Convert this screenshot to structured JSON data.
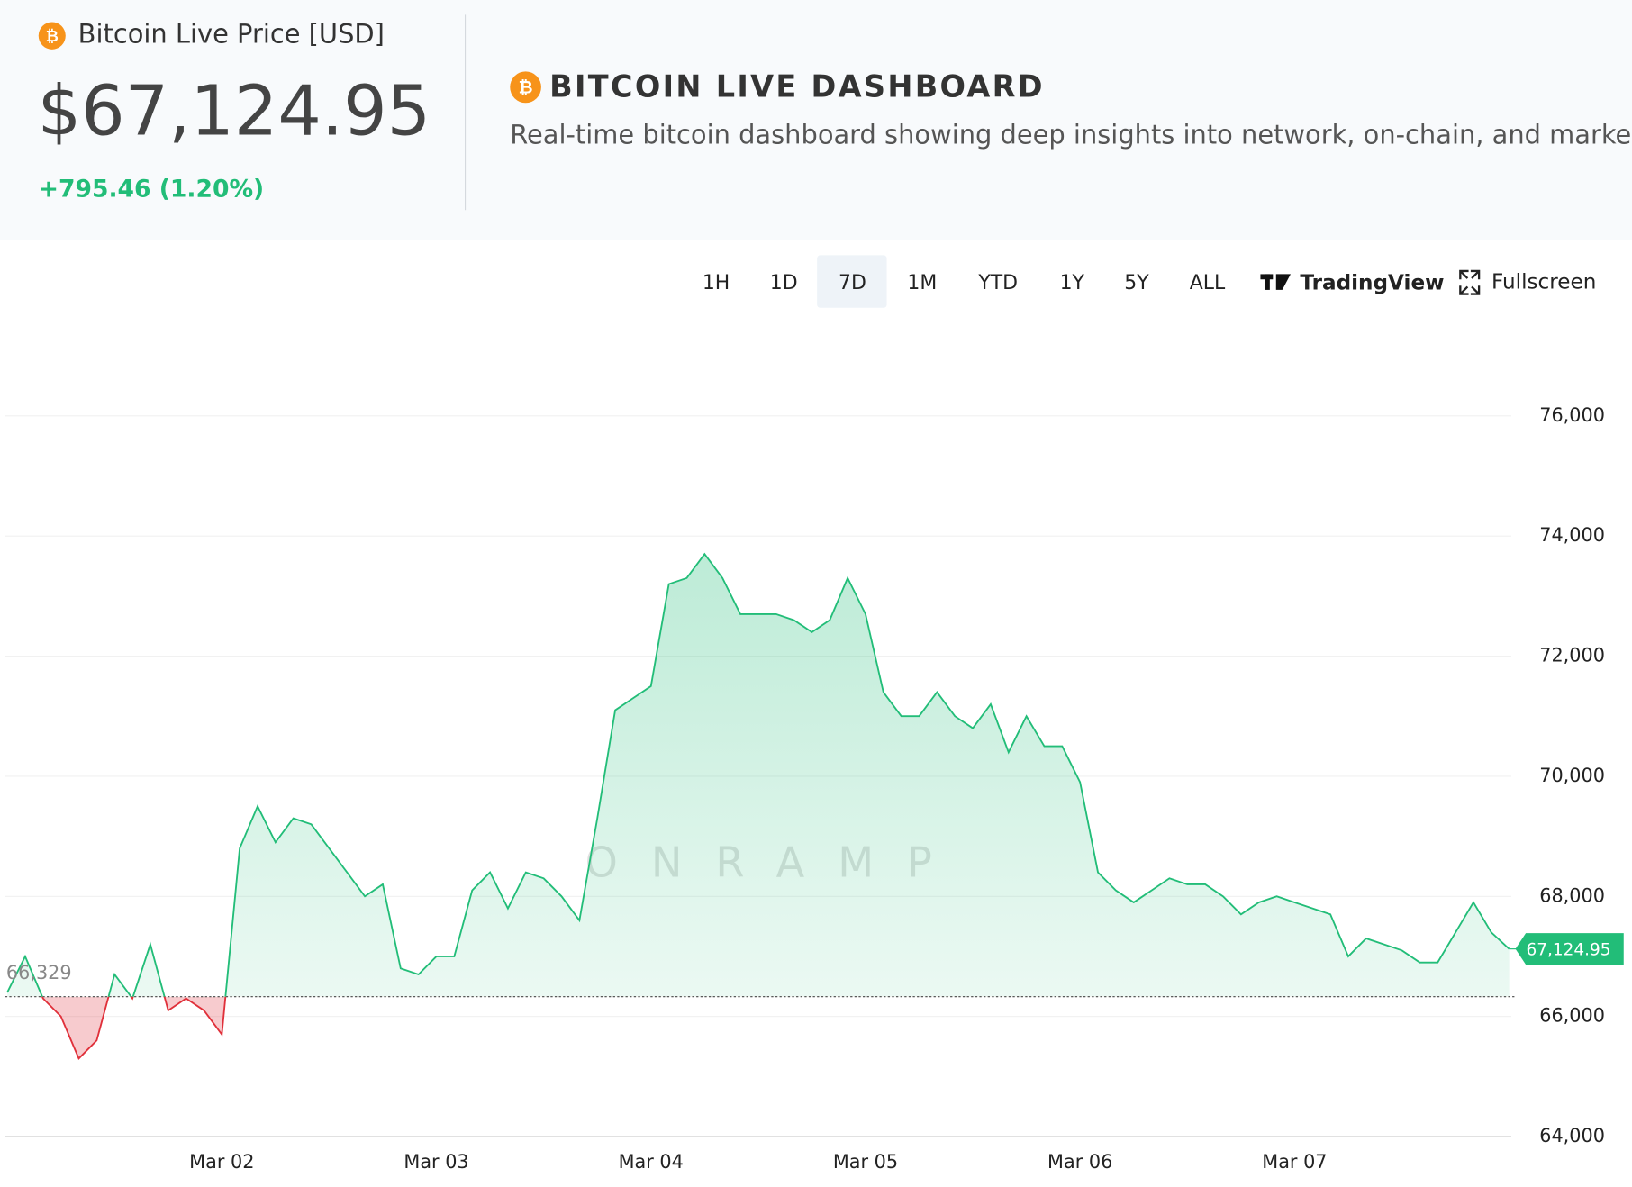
{
  "header": {
    "title": "Bitcoin Live Price [USD]",
    "price": "$67,124.95",
    "change": "+795.46 (1.20%)"
  },
  "dashboard": {
    "title": "BITCOIN LIVE DASHBOARD",
    "subtitle": "Real-time bitcoin dashboard showing deep insights into network, on-chain, and market data"
  },
  "toolbar": {
    "ranges": [
      "1H",
      "1D",
      "7D",
      "1M",
      "YTD",
      "1Y",
      "5Y",
      "ALL"
    ],
    "selected": "7D",
    "tradingview": "TradingView",
    "fullscreen": "Fullscreen"
  },
  "chart_data": {
    "type": "line",
    "values": [
      66400,
      67000,
      66300,
      66000,
      65300,
      65600,
      66700,
      66300,
      67200,
      66100,
      66300,
      66100,
      65700,
      68800,
      69500,
      68900,
      69300,
      69200,
      68800,
      68400,
      68000,
      68200,
      66800,
      66700,
      67000,
      67000,
      68100,
      68400,
      67800,
      68400,
      68300,
      68000,
      67600,
      69300,
      71100,
      71300,
      71500,
      73200,
      73300,
      73700,
      73300,
      72700,
      72700,
      72700,
      72600,
      72400,
      72600,
      73300,
      72700,
      71400,
      71000,
      71000,
      71400,
      71000,
      70800,
      71200,
      70400,
      71000,
      70500,
      70500,
      69900,
      68400,
      68100,
      67900,
      68100,
      68300,
      68200,
      68200,
      68000,
      67700,
      67900,
      68000,
      67900,
      67800,
      67700,
      67000,
      67300,
      67200,
      67100,
      66900,
      66900,
      67400,
      67900,
      67400,
      67124.95
    ],
    "xlim": [
      0,
      84
    ],
    "xticks": [
      {
        "value": 12,
        "label": "Mar 02"
      },
      {
        "value": 24,
        "label": "Mar 03"
      },
      {
        "value": 36,
        "label": "Mar 04"
      },
      {
        "value": 48,
        "label": "Mar 05"
      },
      {
        "value": 60,
        "label": "Mar 06"
      },
      {
        "value": 72,
        "label": "Mar 07"
      }
    ],
    "ylim": [
      64000,
      77000
    ],
    "yticks": [
      {
        "value": 64000,
        "label": "64,000"
      },
      {
        "value": 66000,
        "label": "66,000"
      },
      {
        "value": 68000,
        "label": "68,000"
      },
      {
        "value": 70000,
        "label": "70,000"
      },
      {
        "value": 72000,
        "label": "72,000"
      },
      {
        "value": 74000,
        "label": "74,000"
      },
      {
        "value": 76000,
        "label": "76,000"
      }
    ],
    "baseline": {
      "value": 66329,
      "label": "66,329"
    },
    "last_value_label": "67,124.95",
    "up_color": "#22bd78",
    "down_color": "#e0303a",
    "grid": true,
    "watermark": "ONRAMP"
  }
}
